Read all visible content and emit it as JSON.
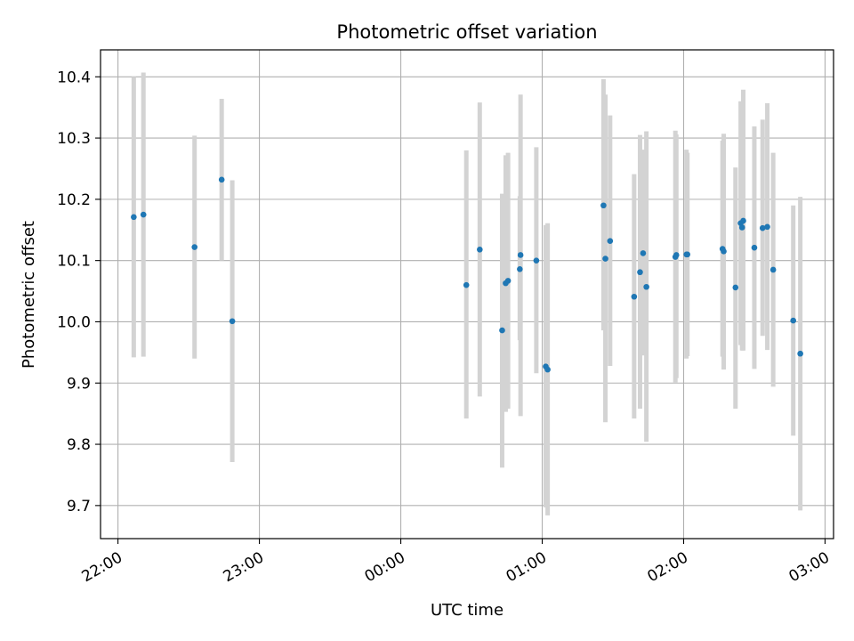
{
  "chart_data": {
    "type": "scatter",
    "title": "Photometric offset variation",
    "xlabel": "UTC time",
    "ylabel": "Photometric offset",
    "x_tick_labels": [
      "22:00",
      "23:00",
      "00:00",
      "01:00",
      "02:00",
      "03:00"
    ],
    "x_ticks_minutes": [
      0,
      60,
      120,
      180,
      240,
      300
    ],
    "x_origin_label": "22:00",
    "xlim_minutes": [
      -7.4,
      303.6
    ],
    "y_ticks": [
      9.7,
      9.8,
      9.9,
      10.0,
      10.1,
      10.2,
      10.3,
      10.4
    ],
    "y_tick_labels": [
      "9.7",
      "9.8",
      "9.9",
      "10.0",
      "10.1",
      "10.2",
      "10.3",
      "10.4"
    ],
    "ylim": [
      9.646,
      10.444
    ],
    "grid": true,
    "marker_color": "#1f77b4",
    "errorbar_color": "#d3d3d3",
    "series": [
      {
        "points": [
          {
            "t": 6.7,
            "y": 10.171,
            "lo": 9.942,
            "hi": 10.4
          },
          {
            "t": 10.8,
            "y": 10.175,
            "lo": 9.943,
            "hi": 10.407
          },
          {
            "t": 32.5,
            "y": 10.122,
            "lo": 9.94,
            "hi": 10.304
          },
          {
            "t": 44.0,
            "y": 10.232,
            "lo": 10.1,
            "hi": 10.364
          },
          {
            "t": 48.5,
            "y": 10.001,
            "lo": 9.771,
            "hi": 10.231
          },
          {
            "t": 147.8,
            "y": 10.06,
            "lo": 9.842,
            "hi": 10.28
          },
          {
            "t": 153.5,
            "y": 10.118,
            "lo": 9.878,
            "hi": 10.358
          },
          {
            "t": 163.0,
            "y": 9.986,
            "lo": 9.762,
            "hi": 10.209
          },
          {
            "t": 164.5,
            "y": 10.063,
            "lo": 9.853,
            "hi": 10.272
          },
          {
            "t": 165.5,
            "y": 10.067,
            "lo": 9.858,
            "hi": 10.276
          },
          {
            "t": 170.5,
            "y": 10.086,
            "lo": 9.97,
            "hi": 10.205
          },
          {
            "t": 170.8,
            "y": 10.109,
            "lo": 9.846,
            "hi": 10.371
          },
          {
            "t": 177.5,
            "y": 10.1,
            "lo": 9.916,
            "hi": 10.285
          },
          {
            "t": 181.5,
            "y": 9.927,
            "lo": 9.697,
            "hi": 10.158
          },
          {
            "t": 182.3,
            "y": 9.922,
            "lo": 9.684,
            "hi": 10.161
          },
          {
            "t": 206.0,
            "y": 10.19,
            "lo": 9.986,
            "hi": 10.396
          },
          {
            "t": 206.8,
            "y": 10.103,
            "lo": 9.836,
            "hi": 10.371
          },
          {
            "t": 208.8,
            "y": 10.132,
            "lo": 9.928,
            "hi": 10.337
          },
          {
            "t": 219.0,
            "y": 10.041,
            "lo": 9.842,
            "hi": 10.241
          },
          {
            "t": 221.5,
            "y": 10.081,
            "lo": 9.858,
            "hi": 10.305
          },
          {
            "t": 222.8,
            "y": 10.112,
            "lo": 9.945,
            "hi": 10.281
          },
          {
            "t": 224.2,
            "y": 10.057,
            "lo": 9.804,
            "hi": 10.311
          },
          {
            "t": 236.5,
            "y": 10.106,
            "lo": 9.901,
            "hi": 10.312
          },
          {
            "t": 236.9,
            "y": 10.109,
            "lo": 9.908,
            "hi": 10.306
          },
          {
            "t": 241.2,
            "y": 10.11,
            "lo": 9.94,
            "hi": 10.281
          },
          {
            "t": 241.6,
            "y": 10.11,
            "lo": 9.944,
            "hi": 10.276
          },
          {
            "t": 256.5,
            "y": 10.119,
            "lo": 9.943,
            "hi": 10.296
          },
          {
            "t": 257.0,
            "y": 10.115,
            "lo": 9.922,
            "hi": 10.307
          },
          {
            "t": 262.0,
            "y": 10.056,
            "lo": 9.858,
            "hi": 10.252
          },
          {
            "t": 264.2,
            "y": 10.161,
            "lo": 9.962,
            "hi": 10.36
          },
          {
            "t": 264.8,
            "y": 10.154,
            "lo": 9.953,
            "hi": 10.356
          },
          {
            "t": 265.3,
            "y": 10.165,
            "lo": 9.953,
            "hi": 10.379
          },
          {
            "t": 270.0,
            "y": 10.121,
            "lo": 9.923,
            "hi": 10.319
          },
          {
            "t": 273.5,
            "y": 10.153,
            "lo": 9.977,
            "hi": 10.33
          },
          {
            "t": 275.5,
            "y": 10.155,
            "lo": 9.954,
            "hi": 10.357
          },
          {
            "t": 278.0,
            "y": 10.085,
            "lo": 9.894,
            "hi": 10.276
          },
          {
            "t": 286.5,
            "y": 10.002,
            "lo": 9.814,
            "hi": 10.19
          },
          {
            "t": 289.5,
            "y": 9.948,
            "lo": 9.692,
            "hi": 10.204
          }
        ]
      }
    ]
  }
}
